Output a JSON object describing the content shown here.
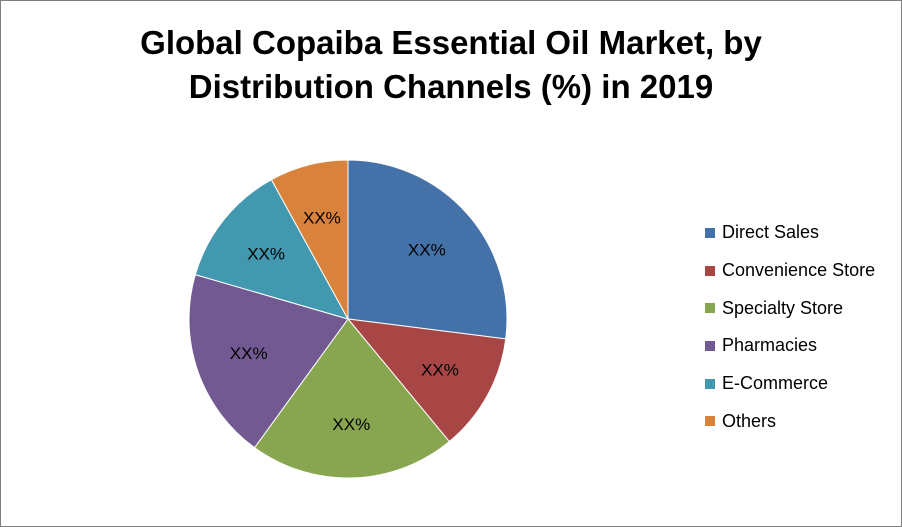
{
  "chart_data": {
    "type": "pie",
    "title_lines": [
      "Global Copaiba Essential Oil Market, by",
      "Distribution Channels (%) in 2019"
    ],
    "slices": [
      {
        "label": "Direct Sales",
        "value": 27,
        "value_label": "XX%",
        "color": "#4472a8"
      },
      {
        "label": "Convenience Store",
        "value": 12,
        "value_label": "XX%",
        "color": "#a74645"
      },
      {
        "label": "Specialty Store",
        "value": 21,
        "value_label": "XX%",
        "color": "#88a54f"
      },
      {
        "label": "Pharmacies",
        "value": 19.5,
        "value_label": "XX%",
        "color": "#725992"
      },
      {
        "label": "E-Commerce",
        "value": 12.5,
        "value_label": "XX%",
        "color": "#4298ae"
      },
      {
        "label": "Others",
        "value": 8,
        "value_label": "XX%",
        "color": "#d9823b"
      }
    ],
    "legend_position": "right",
    "start_angle_deg": 0,
    "direction": "clockwise"
  }
}
